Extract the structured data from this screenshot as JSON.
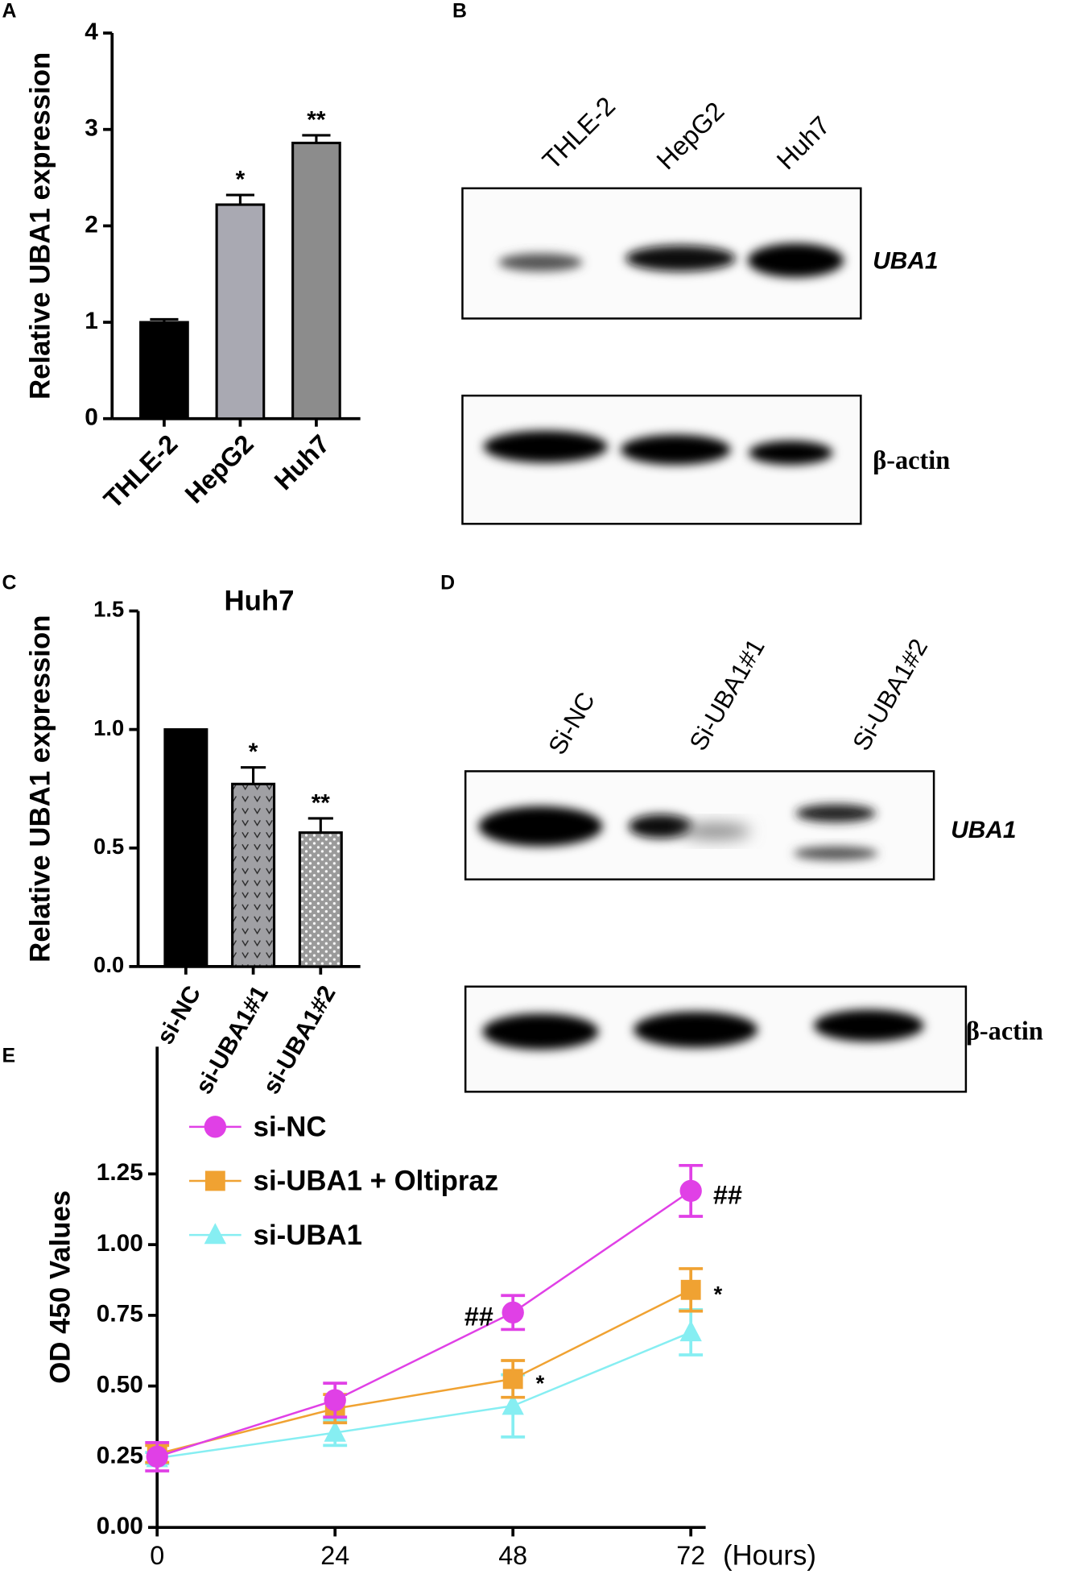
{
  "panel_labels": [
    "A",
    "B",
    "C",
    "D",
    "E"
  ],
  "chart_data": [
    {
      "type": "bar",
      "y_label": "Relative UBA1 expression",
      "categories": [
        "THLE-2",
        "HepG2",
        "Huh7"
      ],
      "values": [
        1.0,
        2.22,
        2.86
      ],
      "errors": [
        0.03,
        0.1,
        0.08
      ],
      "annotations": [
        null,
        "*",
        "**"
      ],
      "colors": [
        "#000000",
        "#a9a9b2",
        "#8c8c8c"
      ],
      "ylim": [
        0,
        4
      ],
      "yticks": [
        0,
        1,
        2,
        3,
        4
      ]
    },
    {
      "type": "bar",
      "title": "Huh7",
      "y_label": "Relative UBA1 expression",
      "categories": [
        "si-NC",
        "si-UBA1#1",
        "si-UBA1#2"
      ],
      "values": [
        1.0,
        0.77,
        0.565
      ],
      "errors": [
        0,
        0.07,
        0.06
      ],
      "annotations": [
        null,
        "*",
        "**"
      ],
      "colors": [
        "#000000",
        "#a0a0a4",
        "#9a9a9a"
      ],
      "patterns": [
        null,
        "chevron",
        "dots"
      ],
      "ylim": [
        0,
        1.5
      ],
      "yticks": [
        {
          "value": 0,
          "label": "0.0"
        },
        0.5,
        {
          "value": 1,
          "label": "1.0"
        },
        1.5
      ]
    },
    {
      "type": "line",
      "y_label": "OD 450 Values",
      "x_label": "(Hours)",
      "x": [
        0,
        24,
        48,
        72
      ],
      "series": [
        {
          "name": "si-NC",
          "color": "#e040e6",
          "marker": "circle",
          "values": [
            0.25,
            0.45,
            0.76,
            1.19
          ],
          "errors": [
            0.05,
            0.06,
            0.06,
            0.09
          ],
          "point_labels": [
            null,
            null,
            "##",
            "##"
          ]
        },
        {
          "name": "si-UBA1 + Oltipraz",
          "color": "#f0a232",
          "marker": "square",
          "values": [
            0.26,
            0.42,
            0.525,
            0.84
          ],
          "errors": [
            0.03,
            0.05,
            0.065,
            0.075
          ],
          "point_labels": [
            null,
            null,
            "*",
            "*"
          ]
        },
        {
          "name": "si-UBA1",
          "color": "#86eef2",
          "marker": "triangle",
          "values": [
            0.245,
            0.335,
            0.43,
            0.69
          ],
          "errors": [
            0.02,
            0.045,
            0.11,
            0.08
          ],
          "point_labels": [
            null,
            null,
            null,
            null
          ]
        }
      ],
      "xlim": [
        0,
        74
      ],
      "xticks": [
        0,
        24,
        48,
        72
      ],
      "ylim": [
        0,
        1.7
      ],
      "yticks": [
        {
          "value": 0,
          "label": "0.00"
        },
        {
          "value": 0.25,
          "label": "0.25"
        },
        {
          "value": 0.5,
          "label": "0.50"
        },
        {
          "value": 0.75,
          "label": "0.75"
        },
        {
          "value": 1,
          "label": "1.00"
        },
        {
          "value": 1.25,
          "label": "1.25"
        }
      ],
      "legend": "upper left"
    }
  ],
  "blots": [
    {
      "lanes": [
        "THLE-2",
        "HepG2",
        "Huh7"
      ],
      "rows": [
        "UBA1",
        "β-actin"
      ]
    },
    {
      "lanes": [
        "Si-NC",
        "Si-UBA1#1",
        "Si-UBA1#2"
      ],
      "rows": [
        "UBA1",
        "β-actin"
      ]
    }
  ]
}
